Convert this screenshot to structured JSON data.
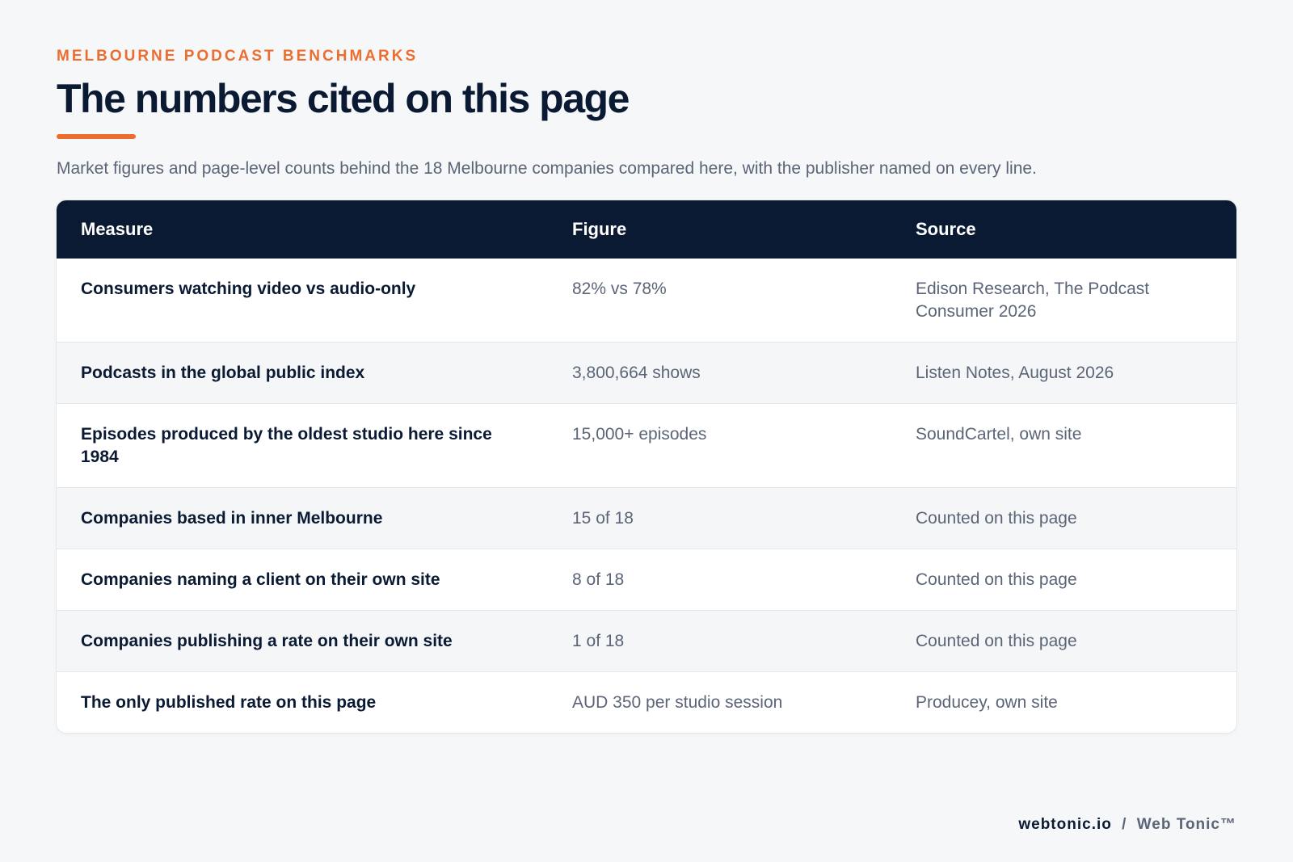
{
  "header": {
    "eyebrow": "MELBOURNE PODCAST BENCHMARKS",
    "title": "The numbers cited on this page",
    "subtitle": "Market figures and page-level counts behind the 18 Melbourne companies compared here, with the publisher named on every line."
  },
  "table": {
    "columns": [
      "Measure",
      "Figure",
      "Source"
    ],
    "rows": [
      {
        "measure": "Consumers watching video vs audio-only",
        "figure": "82% vs 78%",
        "source": "Edison Research, The Podcast Consumer 2026"
      },
      {
        "measure": "Podcasts in the global public index",
        "figure": "3,800,664 shows",
        "source": "Listen Notes, August 2026"
      },
      {
        "measure": "Episodes produced by the oldest studio here since 1984",
        "figure": "15,000+ episodes",
        "source": "SoundCartel, own site"
      },
      {
        "measure": "Companies based in inner Melbourne",
        "figure": "15 of 18",
        "source": "Counted on this page"
      },
      {
        "measure": "Companies naming a client on their own site",
        "figure": "8 of 18",
        "source": "Counted on this page"
      },
      {
        "measure": "Companies publishing a rate on their own site",
        "figure": "1 of 18",
        "source": "Counted on this page"
      },
      {
        "measure": "The only published rate on this page",
        "figure": "AUD 350 per studio session",
        "source": "Producey, own site"
      }
    ]
  },
  "footer": {
    "domain": "webtonic.io",
    "separator": "/",
    "brand": "Web Tonic™"
  },
  "colors": {
    "accent": "#ed6d2f",
    "navy": "#0b1a33",
    "muted": "#5b6577",
    "background": "#f6f7f9"
  }
}
